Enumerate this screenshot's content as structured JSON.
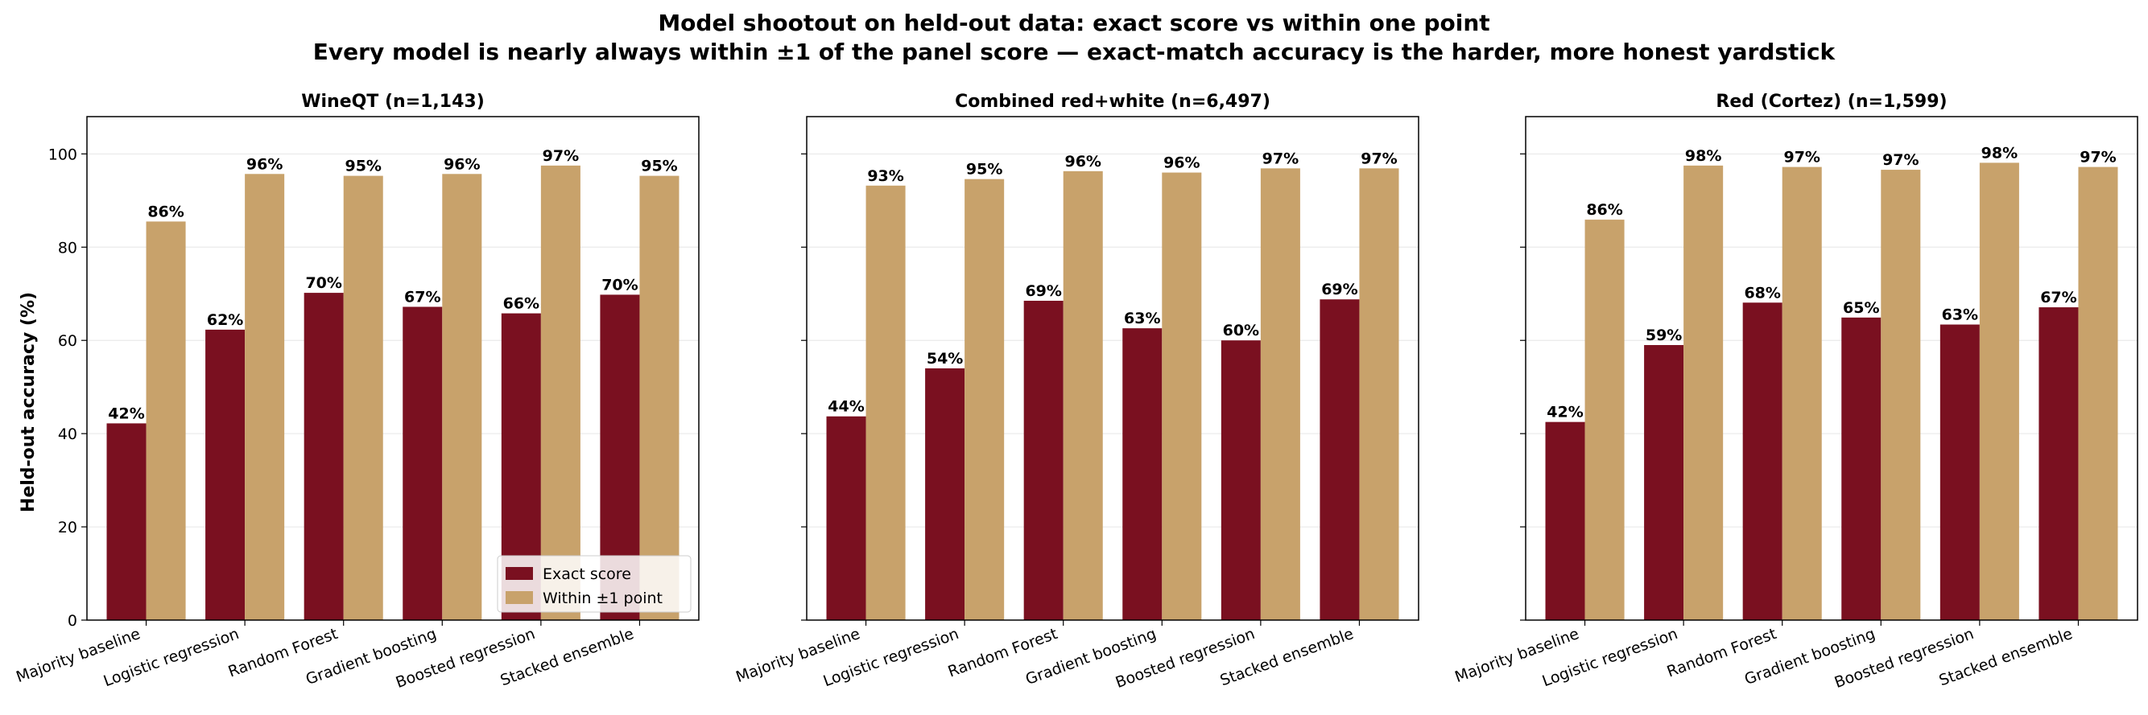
{
  "title": "Model shootout on held-out data: exact score vs within one point",
  "subtitle": "Every model is nearly always within ±1 of the panel score — exact-match accuracy is the harder, more honest yardstick",
  "colors": {
    "exact": "#7a1020",
    "within": "#c8a26b"
  },
  "chart_data": [
    {
      "type": "bar",
      "title": "WineQT (n=1,143)",
      "ylabel": "Held-out accuracy (%)",
      "ylim": [
        0,
        108
      ],
      "yticks": [
        0,
        20,
        40,
        60,
        80,
        100
      ],
      "grid": true,
      "legend": "lower-right",
      "categories": [
        "Majority baseline",
        "Logistic regression",
        "Random Forest",
        "Gradient boosting",
        "Boosted regression",
        "Stacked ensemble"
      ],
      "series": [
        {
          "name": "Exact score",
          "values": [
            42.2,
            62.3,
            70.2,
            67.2,
            65.8,
            69.8
          ],
          "labels": [
            "42%",
            "62%",
            "70%",
            "67%",
            "66%",
            "70%"
          ]
        },
        {
          "name": "Within ±1 point",
          "values": [
            85.5,
            95.7,
            95.3,
            95.7,
            97.5,
            95.3
          ],
          "labels": [
            "86%",
            "96%",
            "95%",
            "96%",
            "97%",
            "95%"
          ]
        }
      ]
    },
    {
      "type": "bar",
      "title": "Combined red+white (n=6,497)",
      "ylim": [
        0,
        108
      ],
      "yticks": [
        0,
        20,
        40,
        60,
        80,
        100
      ],
      "grid": true,
      "categories": [
        "Majority baseline",
        "Logistic regression",
        "Random Forest",
        "Gradient boosting",
        "Boosted regression",
        "Stacked ensemble"
      ],
      "series": [
        {
          "name": "Exact score",
          "values": [
            43.7,
            54.0,
            68.5,
            62.6,
            60.0,
            68.8
          ],
          "labels": [
            "44%",
            "54%",
            "69%",
            "63%",
            "60%",
            "69%"
          ]
        },
        {
          "name": "Within ±1 point",
          "values": [
            93.2,
            94.6,
            96.3,
            96.0,
            96.9,
            96.9
          ],
          "labels": [
            "93%",
            "95%",
            "96%",
            "96%",
            "97%",
            "97%"
          ]
        }
      ]
    },
    {
      "type": "bar",
      "title": "Red (Cortez) (n=1,599)",
      "ylim": [
        0,
        108
      ],
      "yticks": [
        0,
        20,
        40,
        60,
        80,
        100
      ],
      "grid": true,
      "categories": [
        "Majority baseline",
        "Logistic regression",
        "Random Forest",
        "Gradient boosting",
        "Boosted regression",
        "Stacked ensemble"
      ],
      "series": [
        {
          "name": "Exact score",
          "values": [
            42.5,
            59.0,
            68.1,
            64.9,
            63.4,
            67.1
          ],
          "labels": [
            "42%",
            "59%",
            "68%",
            "65%",
            "63%",
            "67%"
          ]
        },
        {
          "name": "Within ±1 point",
          "values": [
            85.9,
            97.5,
            97.2,
            96.6,
            98.1,
            97.2
          ],
          "labels": [
            "86%",
            "98%",
            "97%",
            "97%",
            "98%",
            "97%"
          ]
        }
      ]
    }
  ]
}
